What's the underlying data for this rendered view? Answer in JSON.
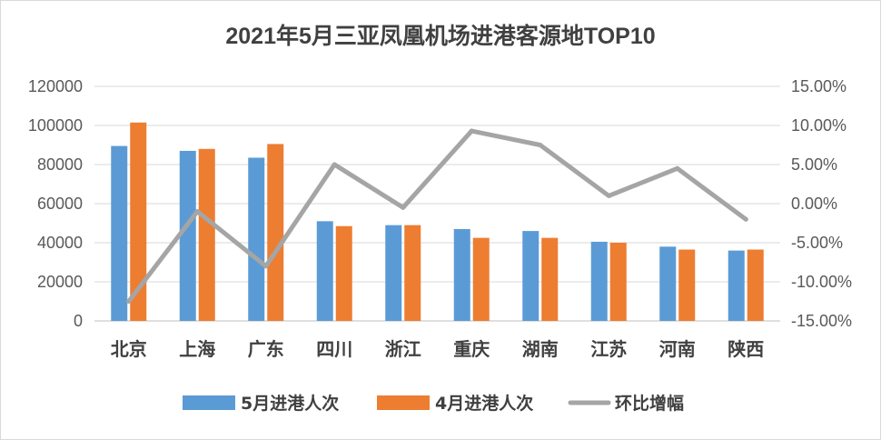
{
  "chart_data": {
    "type": "bar",
    "title": "2021年5月三亚凤凰机场进港客源地TOP10",
    "categories": [
      "北京",
      "上海",
      "广东",
      "四川",
      "浙江",
      "重庆",
      "湖南",
      "江苏",
      "河南",
      "陕西"
    ],
    "series": [
      {
        "name": "5月进港人次",
        "type": "bar",
        "axis": "left",
        "color": "#5b9bd5",
        "values": [
          89500,
          87000,
          83500,
          51000,
          49000,
          47000,
          46000,
          40500,
          38000,
          36000
        ]
      },
      {
        "name": "4月进港人次",
        "type": "bar",
        "axis": "left",
        "color": "#ed7d31",
        "values": [
          101500,
          88000,
          90500,
          48500,
          49000,
          42500,
          42500,
          40000,
          36500,
          36500
        ]
      },
      {
        "name": "环比增幅",
        "type": "line",
        "axis": "right",
        "color": "#a5a5a5",
        "values": [
          -12.5,
          -1.0,
          -8.0,
          5.0,
          -0.5,
          9.3,
          7.5,
          1.0,
          4.5,
          -2.0
        ]
      }
    ],
    "y_left": {
      "min": 0,
      "max": 120000,
      "step": 20000,
      "tick_labels": [
        "0",
        "20000",
        "40000",
        "60000",
        "80000",
        "100000",
        "120000"
      ]
    },
    "y_right": {
      "min": -15,
      "max": 15,
      "step": 5,
      "tick_labels": [
        "-15.00%",
        "-10.00%",
        "-5.00%",
        "0.00%",
        "5.00%",
        "10.00%",
        "15.00%"
      ]
    },
    "grid": true,
    "legend_position": "bottom"
  }
}
